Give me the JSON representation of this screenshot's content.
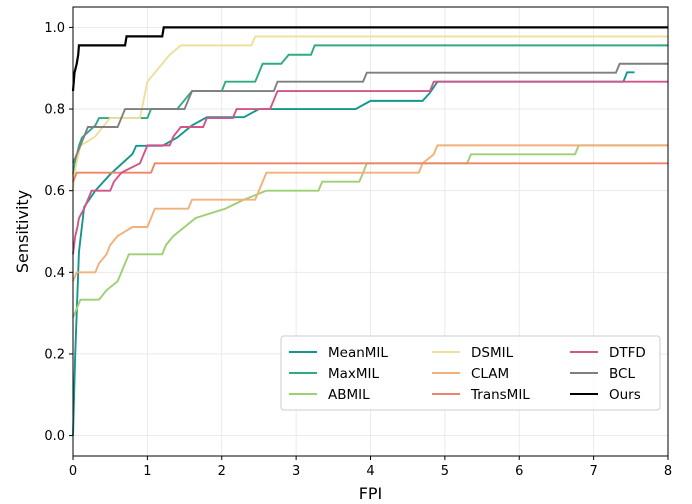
{
  "chart_data": {
    "type": "line",
    "xlabel": "FPI",
    "ylabel": "Sensitivity",
    "xlim": [
      0,
      8
    ],
    "ylim": [
      -0.05,
      1.05
    ],
    "x_ticks": [
      0,
      1,
      2,
      3,
      4,
      5,
      6,
      7,
      8
    ],
    "y_ticks": [
      0.0,
      0.2,
      0.4,
      0.6,
      0.8,
      1.0
    ],
    "x_tick_labels": [
      "0",
      "1",
      "2",
      "3",
      "4",
      "5",
      "6",
      "7",
      "8"
    ],
    "y_tick_labels": [
      "0.0",
      "0.2",
      "0.4",
      "0.6",
      "0.8",
      "1.0"
    ],
    "grid": true,
    "legend": {
      "position": "lower-right",
      "columns": 3
    },
    "series": [
      {
        "name": "MeanMIL",
        "color": "#14968f",
        "points": [
          [
            0,
            0.0
          ],
          [
            0.03,
            0.2
          ],
          [
            0.08,
            0.45
          ],
          [
            0.15,
            0.56
          ],
          [
            0.3,
            0.6
          ],
          [
            0.5,
            0.64
          ],
          [
            0.8,
            0.69
          ],
          [
            0.85,
            0.71
          ],
          [
            1.2,
            0.71
          ],
          [
            1.4,
            0.73
          ],
          [
            1.6,
            0.76
          ],
          [
            1.8,
            0.78
          ],
          [
            2.3,
            0.78
          ],
          [
            2.5,
            0.8
          ],
          [
            3.8,
            0.8
          ],
          [
            4.0,
            0.82
          ],
          [
            4.7,
            0.82
          ],
          [
            4.8,
            0.84
          ],
          [
            4.9,
            0.867
          ],
          [
            7.4,
            0.867
          ],
          [
            7.45,
            0.89
          ],
          [
            7.55,
            0.89
          ]
        ]
      },
      {
        "name": "MaxMIL",
        "color": "#2eaa86",
        "points": [
          [
            0,
            0.64
          ],
          [
            0.03,
            0.67
          ],
          [
            0.08,
            0.71
          ],
          [
            0.12,
            0.73
          ],
          [
            0.3,
            0.76
          ],
          [
            0.35,
            0.778
          ],
          [
            1.0,
            0.778
          ],
          [
            1.05,
            0.8
          ],
          [
            1.4,
            0.8
          ],
          [
            1.5,
            0.822
          ],
          [
            1.6,
            0.844
          ],
          [
            2.0,
            0.844
          ],
          [
            2.05,
            0.867
          ],
          [
            2.45,
            0.867
          ],
          [
            2.5,
            0.889
          ],
          [
            2.55,
            0.911
          ],
          [
            2.8,
            0.911
          ],
          [
            2.9,
            0.933
          ],
          [
            3.2,
            0.933
          ],
          [
            3.25,
            0.956
          ],
          [
            8,
            0.956
          ]
        ]
      },
      {
        "name": "ABMIL",
        "color": "#9ecf72",
        "points": [
          [
            0,
            0.289
          ],
          [
            0.05,
            0.311
          ],
          [
            0.1,
            0.333
          ],
          [
            0.35,
            0.333
          ],
          [
            0.45,
            0.356
          ],
          [
            0.6,
            0.378
          ],
          [
            0.65,
            0.4
          ],
          [
            0.7,
            0.422
          ],
          [
            0.75,
            0.444
          ],
          [
            1.2,
            0.444
          ],
          [
            1.25,
            0.467
          ],
          [
            1.35,
            0.489
          ],
          [
            1.5,
            0.511
          ],
          [
            1.65,
            0.533
          ],
          [
            2.05,
            0.556
          ],
          [
            2.3,
            0.578
          ],
          [
            2.6,
            0.6
          ],
          [
            3.3,
            0.6
          ],
          [
            3.35,
            0.622
          ],
          [
            3.85,
            0.622
          ],
          [
            3.9,
            0.644
          ],
          [
            3.95,
            0.667
          ],
          [
            5.3,
            0.667
          ],
          [
            5.35,
            0.689
          ],
          [
            6.75,
            0.689
          ],
          [
            6.8,
            0.711
          ],
          [
            8,
            0.711
          ]
        ]
      },
      {
        "name": "DSMIL",
        "color": "#ede09a",
        "points": [
          [
            0,
            0.6
          ],
          [
            0.02,
            0.64
          ],
          [
            0.05,
            0.67
          ],
          [
            0.1,
            0.71
          ],
          [
            0.3,
            0.733
          ],
          [
            0.4,
            0.756
          ],
          [
            0.5,
            0.778
          ],
          [
            0.9,
            0.778
          ],
          [
            0.95,
            0.822
          ],
          [
            1.0,
            0.867
          ],
          [
            1.1,
            0.889
          ],
          [
            1.2,
            0.911
          ],
          [
            1.3,
            0.933
          ],
          [
            1.45,
            0.956
          ],
          [
            2.4,
            0.956
          ],
          [
            2.45,
            0.978
          ],
          [
            8,
            0.978
          ]
        ]
      },
      {
        "name": "CLAM",
        "color": "#f2b07a",
        "points": [
          [
            0,
            0.378
          ],
          [
            0.05,
            0.4
          ],
          [
            0.3,
            0.4
          ],
          [
            0.35,
            0.422
          ],
          [
            0.45,
            0.444
          ],
          [
            0.5,
            0.467
          ],
          [
            0.6,
            0.489
          ],
          [
            0.8,
            0.511
          ],
          [
            1.0,
            0.511
          ],
          [
            1.05,
            0.533
          ],
          [
            1.1,
            0.556
          ],
          [
            1.55,
            0.556
          ],
          [
            1.6,
            0.578
          ],
          [
            2.45,
            0.578
          ],
          [
            2.5,
            0.6
          ],
          [
            2.55,
            0.622
          ],
          [
            2.6,
            0.644
          ],
          [
            4.65,
            0.644
          ],
          [
            4.7,
            0.667
          ],
          [
            4.85,
            0.689
          ],
          [
            4.9,
            0.711
          ],
          [
            8,
            0.711
          ]
        ]
      },
      {
        "name": "TransMIL",
        "color": "#ee8468",
        "points": [
          [
            0,
            0.622
          ],
          [
            0.05,
            0.644
          ],
          [
            1.05,
            0.644
          ],
          [
            1.1,
            0.667
          ],
          [
            8,
            0.667
          ]
        ]
      },
      {
        "name": "DTFD",
        "color": "#d2558a",
        "points": [
          [
            0,
            0.444
          ],
          [
            0.03,
            0.489
          ],
          [
            0.06,
            0.511
          ],
          [
            0.08,
            0.533
          ],
          [
            0.15,
            0.556
          ],
          [
            0.2,
            0.578
          ],
          [
            0.25,
            0.6
          ],
          [
            0.5,
            0.6
          ],
          [
            0.55,
            0.622
          ],
          [
            0.65,
            0.644
          ],
          [
            0.9,
            0.667
          ],
          [
            0.95,
            0.689
          ],
          [
            1.0,
            0.711
          ],
          [
            1.3,
            0.711
          ],
          [
            1.35,
            0.733
          ],
          [
            1.45,
            0.756
          ],
          [
            1.75,
            0.756
          ],
          [
            1.8,
            0.778
          ],
          [
            2.15,
            0.778
          ],
          [
            2.2,
            0.8
          ],
          [
            2.65,
            0.8
          ],
          [
            2.7,
            0.822
          ],
          [
            2.75,
            0.844
          ],
          [
            4.8,
            0.844
          ],
          [
            4.85,
            0.867
          ],
          [
            8,
            0.867
          ]
        ]
      },
      {
        "name": "BCL",
        "color": "#7f7f7f",
        "points": [
          [
            0,
            0.667
          ],
          [
            0.05,
            0.689
          ],
          [
            0.1,
            0.711
          ],
          [
            0.15,
            0.733
          ],
          [
            0.2,
            0.756
          ],
          [
            0.6,
            0.756
          ],
          [
            0.65,
            0.778
          ],
          [
            0.7,
            0.8
          ],
          [
            1.5,
            0.8
          ],
          [
            1.55,
            0.822
          ],
          [
            1.6,
            0.844
          ],
          [
            2.7,
            0.844
          ],
          [
            2.75,
            0.867
          ],
          [
            3.9,
            0.867
          ],
          [
            3.95,
            0.889
          ],
          [
            7.3,
            0.889
          ],
          [
            7.35,
            0.911
          ],
          [
            8,
            0.911
          ]
        ]
      },
      {
        "name": "Ours",
        "color": "#000000",
        "points": [
          [
            0,
            0.844
          ],
          [
            0.02,
            0.889
          ],
          [
            0.05,
            0.911
          ],
          [
            0.07,
            0.933
          ],
          [
            0.08,
            0.956
          ],
          [
            0.7,
            0.956
          ],
          [
            0.72,
            0.978
          ],
          [
            1.2,
            0.978
          ],
          [
            1.22,
            1.0
          ],
          [
            8,
            1.0
          ]
        ]
      }
    ]
  }
}
